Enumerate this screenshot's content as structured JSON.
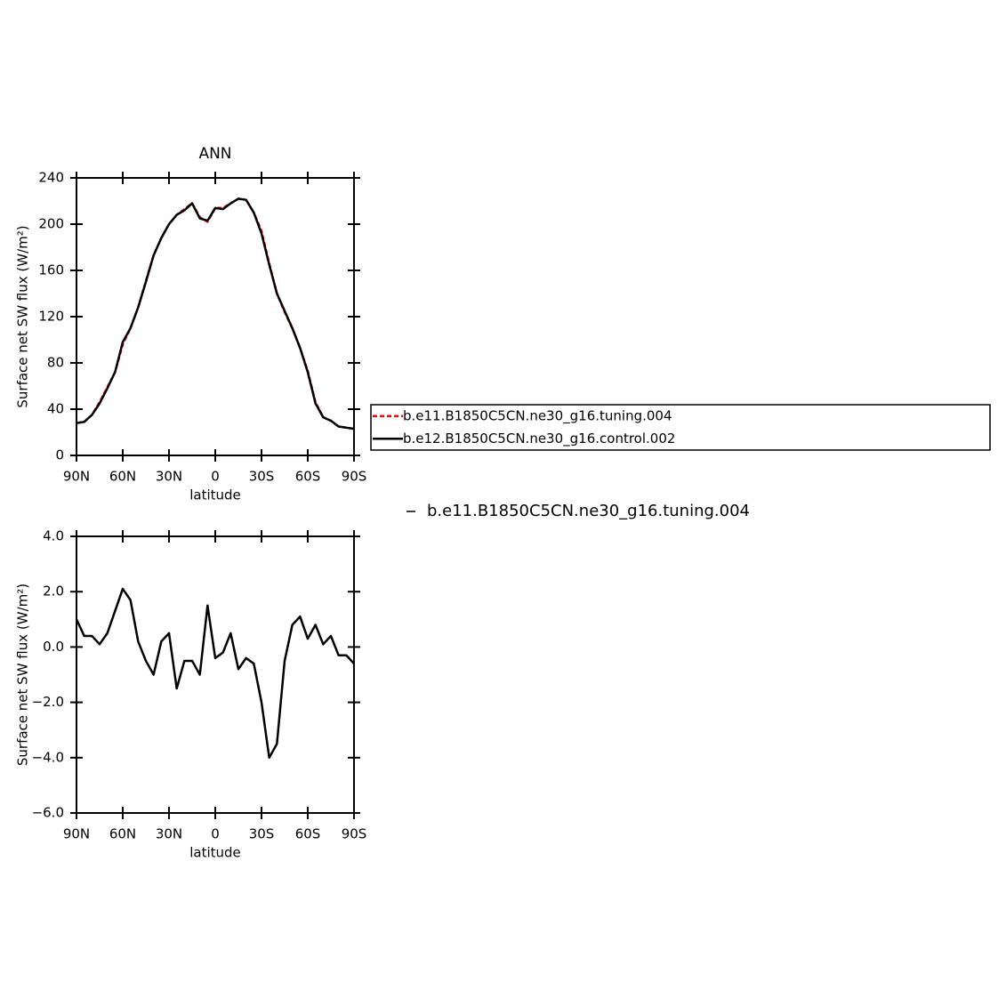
{
  "chart_data": [
    {
      "type": "line",
      "title": "ANN",
      "xlabel": "latitude",
      "ylabel": "Surface net SW flux (W/m²)",
      "x": [
        90,
        85,
        80,
        75,
        70,
        65,
        60,
        55,
        50,
        45,
        40,
        35,
        30,
        25,
        20,
        15,
        10,
        5,
        0,
        -5,
        -10,
        -15,
        -20,
        -25,
        -30,
        -35,
        -40,
        -45,
        -50,
        -55,
        -60,
        -65,
        -70,
        -75,
        -80,
        -85,
        -90
      ],
      "series": [
        {
          "name": "b.e11.B1850C5CN.ne30_g16.tuning.004",
          "color": "#ff0000",
          "dash": "dashed",
          "values": [
            28,
            29,
            35,
            46,
            59,
            72,
            96,
            110,
            128,
            151,
            173,
            188,
            200,
            208,
            213,
            218,
            206,
            202,
            214,
            214,
            218,
            222,
            221,
            210,
            194,
            166,
            140,
            124,
            110,
            93,
            73,
            46,
            33,
            30,
            25,
            24,
            23
          ]
        },
        {
          "name": "b.e12.B1850C5CN.ne30_g16.control.002",
          "color": "#000000",
          "dash": "solid",
          "values": [
            28,
            29,
            35,
            45,
            58,
            72,
            98,
            110,
            128,
            150,
            173,
            188,
            200,
            208,
            212,
            218,
            205,
            203,
            214,
            213,
            218,
            222,
            221,
            210,
            192,
            165,
            140,
            125,
            110,
            93,
            72,
            45,
            33,
            30,
            25,
            24,
            23
          ]
        }
      ],
      "xlim": [
        90,
        -90
      ],
      "xticks": [
        {
          "value": 90,
          "label": "90N"
        },
        {
          "value": 60,
          "label": "60N"
        },
        {
          "value": 30,
          "label": "30N"
        },
        0,
        {
          "value": -30,
          "label": "30S"
        },
        {
          "value": -60,
          "label": "60S"
        },
        {
          "value": -90,
          "label": "90S"
        }
      ],
      "ylim": [
        0,
        240
      ],
      "yticks": [
        0,
        40,
        80,
        120,
        160,
        200,
        240
      ],
      "legend": "outside-right",
      "legend_frame": true
    },
    {
      "type": "line",
      "xlabel": "latitude",
      "ylabel": "Surface net SW flux (W/m²)",
      "x": [
        90,
        85,
        80,
        75,
        70,
        65,
        60,
        55,
        50,
        45,
        40,
        35,
        30,
        25,
        20,
        15,
        10,
        5,
        0,
        -5,
        -10,
        -15,
        -20,
        -25,
        -30,
        -35,
        -40,
        -45,
        -50,
        -55,
        -60,
        -65,
        -70,
        -75,
        -80,
        -85,
        -90
      ],
      "series": [
        {
          "name": "b.e11.B1850C5CN.ne30_g16.tuning.004",
          "color": "#000000",
          "dash": "solid",
          "values": [
            1.0,
            0.4,
            0.4,
            0.1,
            0.5,
            1.3,
            2.1,
            1.7,
            0.2,
            -0.5,
            -1.0,
            0.2,
            0.5,
            -1.5,
            -0.5,
            -0.5,
            -1.0,
            1.5,
            -0.4,
            -0.2,
            0.5,
            -0.8,
            -0.4,
            -0.6,
            -2.0,
            -4.0,
            -3.5,
            -0.5,
            0.8,
            1.1,
            0.3,
            0.8,
            0.1,
            0.4,
            -0.3,
            -0.3,
            -0.6
          ]
        }
      ],
      "xlim": [
        90,
        -90
      ],
      "xticks": [
        {
          "value": 90,
          "label": "90N"
        },
        {
          "value": 60,
          "label": "60N"
        },
        {
          "value": 30,
          "label": "30N"
        },
        0,
        {
          "value": -30,
          "label": "30S"
        },
        {
          "value": -60,
          "label": "60S"
        },
        {
          "value": -90,
          "label": "90S"
        }
      ],
      "ylim": [
        -6,
        4
      ],
      "yticks": [
        {
          "value": -6,
          "label": "−6.0"
        },
        {
          "value": -4,
          "label": "−4.0"
        },
        {
          "value": -2,
          "label": "−2.0"
        },
        {
          "value": 0,
          "label": "0.0"
        },
        {
          "value": 2,
          "label": "2.0"
        },
        {
          "value": 4,
          "label": "4.0"
        }
      ],
      "legend": "outside-right",
      "legend_frame": false
    }
  ]
}
